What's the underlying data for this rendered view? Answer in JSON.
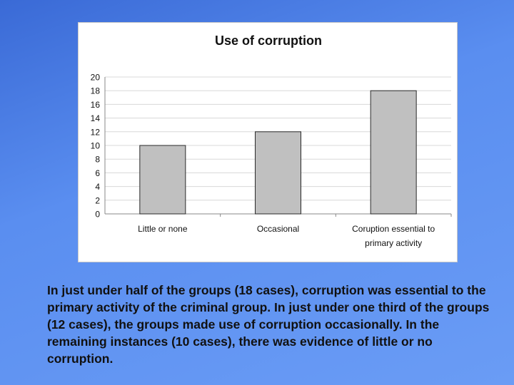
{
  "chart_data": {
    "type": "bar",
    "title": "Use of corruption",
    "categories": [
      "Little or none",
      "Occasional",
      "Coruption essential to primary activity"
    ],
    "category_lines": [
      [
        "Little or none"
      ],
      [
        "Occasional"
      ],
      [
        "Coruption essential to",
        "primary activity"
      ]
    ],
    "values": [
      10,
      12,
      18
    ],
    "ylim": [
      0,
      20
    ],
    "yticks": [
      "0",
      "2",
      "4",
      "6",
      "8",
      "10",
      "12",
      "14",
      "16",
      "18",
      "20"
    ],
    "grid": true,
    "bar_color": "#c0c0c0",
    "bar_edge_color": "#2a2a2a",
    "xlabel": "",
    "ylabel": ""
  },
  "caption": "In just under half of the groups (18 cases), corruption was essential to the primary activity of the criminal group. In just under one third of the groups (12 cases), the groups made use of corruption occasionally. In the remaining instances (10 cases), there was evidence of little or no corruption."
}
